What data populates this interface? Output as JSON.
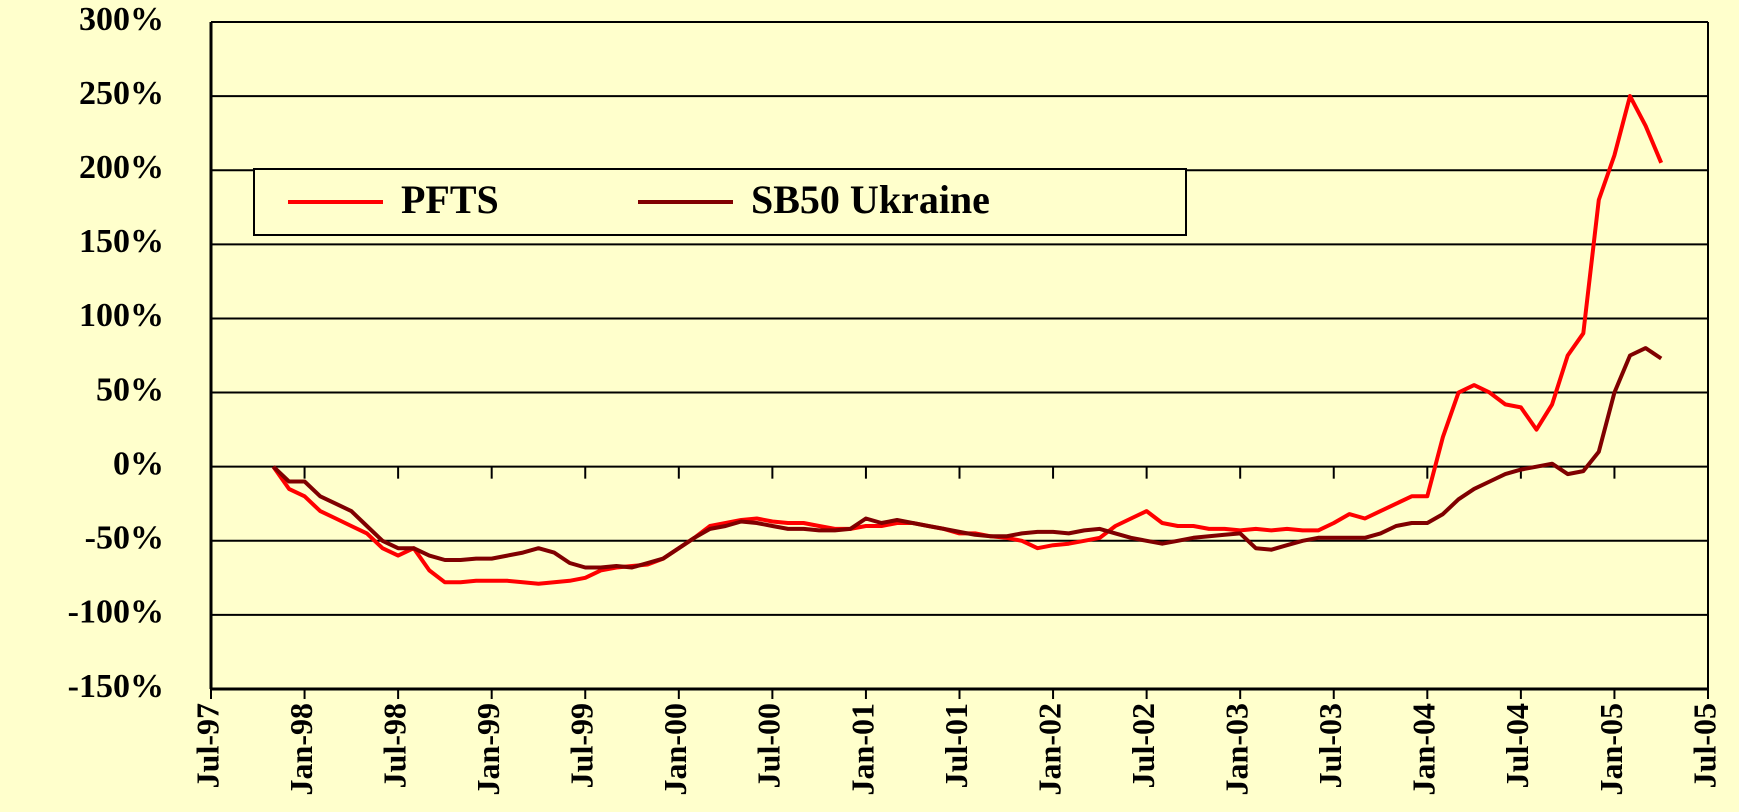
{
  "chart_data": {
    "type": "line",
    "x": [
      "Nov-97",
      "Dec-97",
      "Jan-98",
      "Feb-98",
      "Mar-98",
      "Apr-98",
      "May-98",
      "Jun-98",
      "Jul-98",
      "Aug-98",
      "Sep-98",
      "Oct-98",
      "Nov-98",
      "Dec-98",
      "Jan-99",
      "Feb-99",
      "Mar-99",
      "Apr-99",
      "May-99",
      "Jun-99",
      "Jul-99",
      "Aug-99",
      "Sep-99",
      "Oct-99",
      "Nov-99",
      "Dec-99",
      "Jan-00",
      "Feb-00",
      "Mar-00",
      "Apr-00",
      "May-00",
      "Jun-00",
      "Jul-00",
      "Aug-00",
      "Sep-00",
      "Oct-00",
      "Nov-00",
      "Dec-00",
      "Jan-01",
      "Feb-01",
      "Mar-01",
      "Apr-01",
      "May-01",
      "Jun-01",
      "Jul-01",
      "Aug-01",
      "Sep-01",
      "Oct-01",
      "Nov-01",
      "Dec-01",
      "Jan-02",
      "Feb-02",
      "Mar-02",
      "Apr-02",
      "May-02",
      "Jun-02",
      "Jul-02",
      "Aug-02",
      "Sep-02",
      "Oct-02",
      "Nov-02",
      "Dec-02",
      "Jan-03",
      "Feb-03",
      "Mar-03",
      "Apr-03",
      "May-03",
      "Jun-03",
      "Jul-03",
      "Aug-03",
      "Sep-03",
      "Oct-03",
      "Nov-03",
      "Dec-03",
      "Jan-04",
      "Feb-04",
      "Mar-04",
      "Apr-04",
      "May-04",
      "Jun-04",
      "Jul-04",
      "Aug-04",
      "Sep-04",
      "Oct-04",
      "Nov-04",
      "Dec-04",
      "Jan-05",
      "Feb-05",
      "Mar-05",
      "Apr-05"
    ],
    "series": [
      {
        "name": "PFTS",
        "color": "#ff0000",
        "values": [
          0,
          -15,
          -20,
          -30,
          -35,
          -40,
          -45,
          -55,
          -60,
          -55,
          -70,
          -78,
          -78,
          -77,
          -77,
          -77,
          -78,
          -79,
          -78,
          -77,
          -75,
          -70,
          -68,
          -67,
          -66,
          -62,
          -55,
          -48,
          -40,
          -38,
          -36,
          -35,
          -37,
          -38,
          -38,
          -40,
          -42,
          -42,
          -40,
          -40,
          -38,
          -38,
          -40,
          -42,
          -45,
          -45,
          -47,
          -48,
          -50,
          -55,
          -53,
          -52,
          -50,
          -48,
          -40,
          -35,
          -30,
          -38,
          -40,
          -40,
          -42,
          -42,
          -43,
          -42,
          -43,
          -42,
          -43,
          -43,
          -38,
          -32,
          -35,
          -30,
          -25,
          -20,
          -20,
          20,
          50,
          55,
          50,
          42,
          40,
          25,
          42,
          75,
          90,
          180,
          210,
          250,
          230,
          205
        ]
      },
      {
        "name": "SB50 Ukraine",
        "color": "#800000",
        "values": [
          0,
          -10,
          -10,
          -20,
          -25,
          -30,
          -40,
          -50,
          -55,
          -55,
          -60,
          -63,
          -63,
          -62,
          -62,
          -60,
          -58,
          -55,
          -58,
          -65,
          -68,
          -68,
          -67,
          -68,
          -65,
          -62,
          -55,
          -48,
          -42,
          -40,
          -37,
          -38,
          -40,
          -42,
          -42,
          -43,
          -43,
          -42,
          -35,
          -38,
          -36,
          -38,
          -40,
          -42,
          -44,
          -46,
          -47,
          -47,
          -45,
          -44,
          -44,
          -45,
          -43,
          -42,
          -45,
          -48,
          -50,
          -52,
          -50,
          -48,
          -47,
          -46,
          -45,
          -55,
          -56,
          -53,
          -50,
          -48,
          -48,
          -48,
          -48,
          -45,
          -40,
          -38,
          -38,
          -32,
          -22,
          -15,
          -10,
          -5,
          -2,
          0,
          2,
          -5,
          -3,
          10,
          50,
          75,
          80,
          73
        ]
      }
    ],
    "xticks": [
      "Jul-97",
      "Jan-98",
      "Jul-98",
      "Jan-99",
      "Jul-99",
      "Jan-00",
      "Jul-00",
      "Jan-01",
      "Jul-01",
      "Jan-02",
      "Jul-02",
      "Jan-03",
      "Jul-03",
      "Jan-04",
      "Jul-04",
      "Jan-05",
      "Jul-05"
    ],
    "ylim": [
      -150,
      300
    ],
    "yticks": [
      {
        "value": -150,
        "label": "-150%"
      },
      {
        "value": -100,
        "label": "-100%"
      },
      {
        "value": -50,
        "label": "-50%"
      },
      {
        "value": 0,
        "label": "0%"
      },
      {
        "value": 50,
        "label": "50%"
      },
      {
        "value": 100,
        "label": "100%"
      },
      {
        "value": 150,
        "label": "150%"
      },
      {
        "value": 200,
        "label": "200%"
      },
      {
        "value": 250,
        "label": "250%"
      },
      {
        "value": 300,
        "label": "300%"
      }
    ],
    "grid": true,
    "legend": "upper left"
  }
}
